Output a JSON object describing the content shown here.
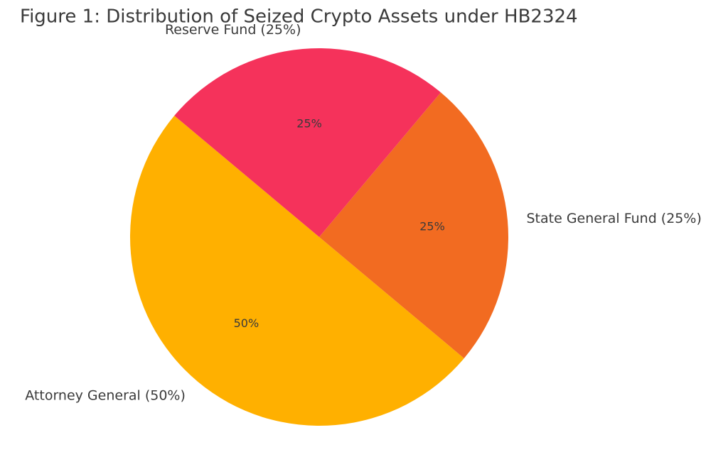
{
  "chart_data": {
    "type": "pie",
    "title": "Figure 1: Distribution of Seized Crypto Assets under HB2324",
    "categories": [
      "Attorney General (50%)",
      "State General Fund (25%)",
      "Reserve Fund (25%)"
    ],
    "values": [
      50,
      25,
      25
    ],
    "value_labels": [
      "50%",
      "25%",
      "25%"
    ],
    "colors": [
      "#FFB000",
      "#F26B21",
      "#F5325B"
    ]
  }
}
